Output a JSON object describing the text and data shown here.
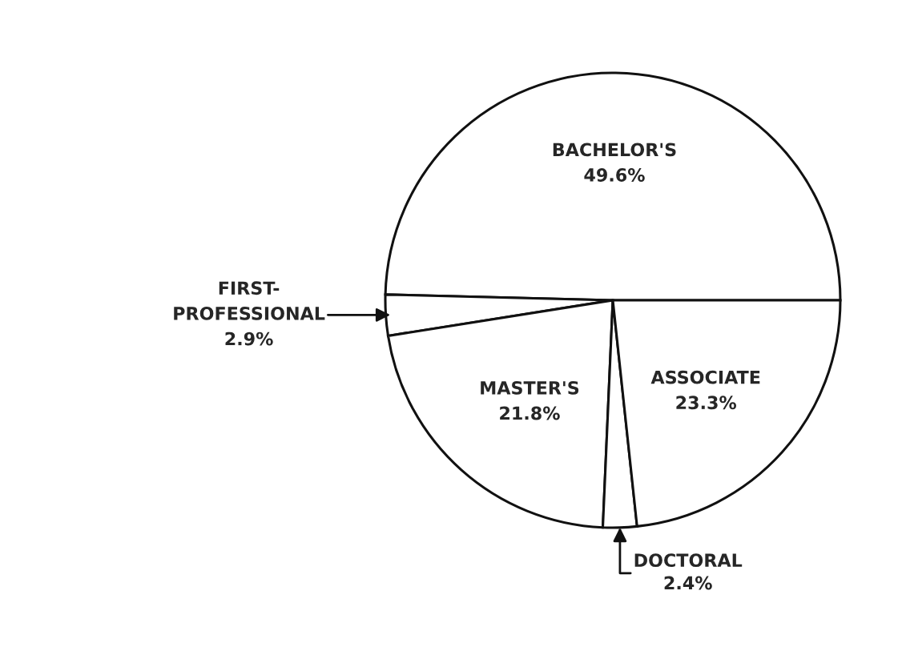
{
  "chart_data": {
    "type": "pie",
    "categories": [
      "BACHELOR'S",
      "FIRST-\nPROFESSIONAL",
      "MASTER'S",
      "DOCTORAL",
      "ASSOCIATE"
    ],
    "values": [
      49.6,
      2.9,
      21.8,
      2.4,
      23.3
    ],
    "value_labels": [
      "49.6%",
      "2.9%",
      "21.8%",
      "2.4%",
      "23.3%"
    ],
    "colors": [
      "#ffffff",
      "#ffffff",
      "#ffffff",
      "#ffffff",
      "#ffffff"
    ]
  }
}
